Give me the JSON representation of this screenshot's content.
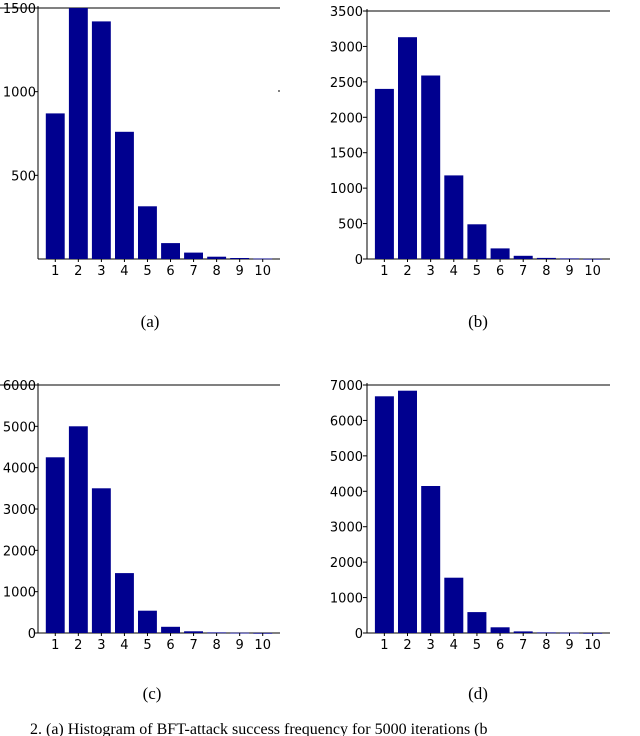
{
  "chart_data": [
    {
      "type": "bar",
      "subtitle": "(a)",
      "categories": [
        "1",
        "2",
        "3",
        "4",
        "5",
        "6",
        "7",
        "8",
        "9",
        "10"
      ],
      "values": [
        870,
        1500,
        1420,
        760,
        315,
        95,
        38,
        14,
        6,
        3
      ],
      "ylim": [
        0,
        1500
      ],
      "yticks": [
        500,
        1000,
        1500
      ],
      "ytick_labels": [
        "500",
        "1000",
        "1500"
      ],
      "grid": false,
      "color": "#00008f"
    },
    {
      "type": "bar",
      "subtitle": "(b)",
      "categories": [
        "1",
        "2",
        "3",
        "4",
        "5",
        "6",
        "7",
        "8",
        "9",
        "10"
      ],
      "values": [
        2400,
        3130,
        2590,
        1180,
        490,
        150,
        45,
        15,
        8,
        3
      ],
      "ylim": [
        0,
        3500
      ],
      "yticks": [
        0,
        500,
        1000,
        1500,
        2000,
        2500,
        3000,
        3500
      ],
      "ytick_labels": [
        "0",
        "500",
        "1000",
        "1500",
        "2000",
        "2500",
        "3000",
        "3500"
      ],
      "grid": false,
      "color": "#00008f"
    },
    {
      "type": "bar",
      "subtitle": "(c)",
      "categories": [
        "1",
        "2",
        "3",
        "4",
        "5",
        "6",
        "7",
        "8",
        "9",
        "10"
      ],
      "values": [
        4250,
        5000,
        3500,
        1450,
        540,
        150,
        40,
        15,
        7,
        3
      ],
      "ylim": [
        0,
        6000
      ],
      "yticks": [
        0,
        1000,
        2000,
        3000,
        4000,
        5000,
        6000
      ],
      "ytick_labels": [
        "0",
        "1000",
        "2000",
        "3000",
        "4000",
        "5000",
        "6000"
      ],
      "grid": false,
      "color": "#00008f"
    },
    {
      "type": "bar",
      "subtitle": "(d)",
      "categories": [
        "1",
        "2",
        "3",
        "4",
        "5",
        "6",
        "7",
        "8",
        "9",
        "10"
      ],
      "values": [
        6680,
        6840,
        4150,
        1560,
        590,
        160,
        45,
        18,
        8,
        3
      ],
      "ylim": [
        0,
        7000
      ],
      "yticks": [
        0,
        1000,
        2000,
        3000,
        4000,
        5000,
        6000,
        7000
      ],
      "ytick_labels": [
        "0",
        "1000",
        "2000",
        "3000",
        "4000",
        "5000",
        "6000",
        "7000"
      ],
      "grid": false,
      "color": "#00008f"
    }
  ],
  "caption": "2. (a) Histogram of BFT-attack success frequency for 5000 iterations (b"
}
